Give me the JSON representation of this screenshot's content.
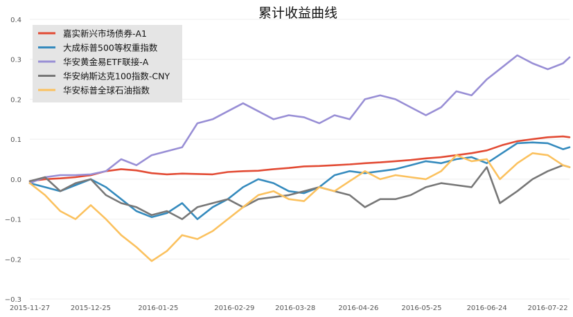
{
  "chart_data": {
    "type": "line",
    "title": "累计收益曲线",
    "xlabel": "",
    "ylabel": "",
    "ylim": [
      -0.3,
      0.4
    ],
    "yticks": [
      -0.3,
      -0.2,
      -0.1,
      0.0,
      0.1,
      0.2,
      0.3,
      0.4
    ],
    "ytick_labels": [
      "−0.3",
      "−0.2",
      "−0.1",
      "0.0",
      "0.1",
      "0.2",
      "0.3",
      "0.4"
    ],
    "xlim": [
      "2015-11-27",
      "2016-08-01"
    ],
    "xticks": [
      "2015-11-27",
      "2015-12-25",
      "2016-01-25",
      "2016-02-29",
      "2016-03-28",
      "2016-04-26",
      "2016-05-25",
      "2016-06-24",
      "2016-07-22"
    ],
    "grid": true,
    "legend_position": "top-left",
    "series": [
      {
        "name": "嘉实新兴市场债券-A1",
        "color": "#e24a33",
        "x": [
          "2015-11-27",
          "2015-12-04",
          "2015-12-11",
          "2015-12-18",
          "2015-12-25",
          "2016-01-01",
          "2016-01-08",
          "2016-01-15",
          "2016-01-22",
          "2016-01-29",
          "2016-02-05",
          "2016-02-19",
          "2016-02-26",
          "2016-03-04",
          "2016-03-11",
          "2016-03-18",
          "2016-03-25",
          "2016-04-01",
          "2016-04-08",
          "2016-04-15",
          "2016-04-22",
          "2016-04-29",
          "2016-05-06",
          "2016-05-13",
          "2016-05-20",
          "2016-05-27",
          "2016-06-03",
          "2016-06-10",
          "2016-06-17",
          "2016-06-24",
          "2016-07-01",
          "2016-07-08",
          "2016-07-15",
          "2016-07-22",
          "2016-07-29",
          "2016-08-01"
        ],
        "y": [
          -0.005,
          0.0,
          0.002,
          0.005,
          0.01,
          0.02,
          0.025,
          0.022,
          0.015,
          0.012,
          0.014,
          0.012,
          0.018,
          0.02,
          0.021,
          0.025,
          0.028,
          0.032,
          0.033,
          0.035,
          0.037,
          0.04,
          0.042,
          0.045,
          0.048,
          0.052,
          0.055,
          0.06,
          0.065,
          0.072,
          0.085,
          0.095,
          0.1,
          0.105,
          0.107,
          0.105
        ]
      },
      {
        "name": "大成标普500等权重指数",
        "color": "#348abd",
        "x": [
          "2015-11-27",
          "2015-12-04",
          "2015-12-11",
          "2015-12-18",
          "2015-12-25",
          "2016-01-01",
          "2016-01-08",
          "2016-01-15",
          "2016-01-22",
          "2016-01-29",
          "2016-02-05",
          "2016-02-12",
          "2016-02-19",
          "2016-02-26",
          "2016-03-04",
          "2016-03-11",
          "2016-03-18",
          "2016-03-25",
          "2016-04-01",
          "2016-04-08",
          "2016-04-15",
          "2016-04-22",
          "2016-04-29",
          "2016-05-06",
          "2016-05-13",
          "2016-05-20",
          "2016-05-27",
          "2016-06-03",
          "2016-06-10",
          "2016-06-17",
          "2016-06-24",
          "2016-07-01",
          "2016-07-08",
          "2016-07-15",
          "2016-07-22",
          "2016-07-29",
          "2016-08-01"
        ],
        "y": [
          -0.01,
          -0.02,
          -0.03,
          -0.015,
          0.0,
          -0.02,
          -0.05,
          -0.08,
          -0.095,
          -0.085,
          -0.06,
          -0.1,
          -0.07,
          -0.05,
          -0.02,
          0.0,
          -0.01,
          -0.03,
          -0.035,
          -0.02,
          0.01,
          0.02,
          0.015,
          0.02,
          0.025,
          0.035,
          0.045,
          0.04,
          0.05,
          0.055,
          0.04,
          0.065,
          0.09,
          0.092,
          0.09,
          0.075,
          0.08
        ]
      },
      {
        "name": "华安黄金易ETF联接-A",
        "color": "#988ed5",
        "x": [
          "2015-11-27",
          "2015-12-04",
          "2015-12-11",
          "2015-12-18",
          "2015-12-25",
          "2016-01-01",
          "2016-01-08",
          "2016-01-15",
          "2016-01-22",
          "2016-01-29",
          "2016-02-05",
          "2016-02-12",
          "2016-02-19",
          "2016-02-26",
          "2016-03-04",
          "2016-03-11",
          "2016-03-18",
          "2016-03-25",
          "2016-04-01",
          "2016-04-08",
          "2016-04-15",
          "2016-04-22",
          "2016-04-29",
          "2016-05-06",
          "2016-05-13",
          "2016-05-20",
          "2016-05-27",
          "2016-06-03",
          "2016-06-10",
          "2016-06-17",
          "2016-06-24",
          "2016-07-01",
          "2016-07-08",
          "2016-07-15",
          "2016-07-22",
          "2016-07-29",
          "2016-08-01"
        ],
        "y": [
          -0.01,
          0.005,
          0.01,
          0.01,
          0.012,
          0.02,
          0.05,
          0.035,
          0.06,
          0.07,
          0.08,
          0.14,
          0.15,
          0.17,
          0.19,
          0.17,
          0.15,
          0.16,
          0.155,
          0.14,
          0.16,
          0.15,
          0.2,
          0.21,
          0.2,
          0.18,
          0.16,
          0.18,
          0.22,
          0.21,
          0.25,
          0.28,
          0.31,
          0.29,
          0.275,
          0.29,
          0.305
        ]
      },
      {
        "name": "华安纳斯达克100指数-CNY",
        "color": "#777777",
        "x": [
          "2015-11-27",
          "2015-12-04",
          "2015-12-11",
          "2015-12-18",
          "2015-12-25",
          "2016-01-01",
          "2016-01-08",
          "2016-01-15",
          "2016-01-22",
          "2016-01-29",
          "2016-02-05",
          "2016-02-12",
          "2016-02-19",
          "2016-02-26",
          "2016-03-04",
          "2016-03-11",
          "2016-03-18",
          "2016-03-25",
          "2016-04-01",
          "2016-04-08",
          "2016-04-15",
          "2016-04-22",
          "2016-04-29",
          "2016-05-06",
          "2016-05-13",
          "2016-05-20",
          "2016-05-27",
          "2016-06-03",
          "2016-06-10",
          "2016-06-17",
          "2016-06-24",
          "2016-06-30",
          "2016-07-08",
          "2016-07-15",
          "2016-07-22",
          "2016-07-29",
          "2016-08-01"
        ],
        "y": [
          -0.005,
          0.005,
          -0.03,
          -0.01,
          0.0,
          -0.04,
          -0.06,
          -0.07,
          -0.09,
          -0.08,
          -0.1,
          -0.07,
          -0.06,
          -0.05,
          -0.07,
          -0.05,
          -0.045,
          -0.04,
          -0.03,
          -0.02,
          -0.03,
          -0.04,
          -0.07,
          -0.05,
          -0.05,
          -0.04,
          -0.02,
          -0.01,
          -0.015,
          -0.02,
          0.03,
          -0.06,
          -0.03,
          0.0,
          0.02,
          0.035,
          0.03
        ]
      },
      {
        "name": "华安标普全球石油指数",
        "color": "#fbc15e",
        "x": [
          "2015-11-27",
          "2015-12-04",
          "2015-12-11",
          "2015-12-18",
          "2015-12-25",
          "2016-01-01",
          "2016-01-08",
          "2016-01-15",
          "2016-01-22",
          "2016-01-29",
          "2016-02-05",
          "2016-02-12",
          "2016-02-19",
          "2016-02-26",
          "2016-03-04",
          "2016-03-11",
          "2016-03-18",
          "2016-03-25",
          "2016-04-01",
          "2016-04-08",
          "2016-04-15",
          "2016-04-22",
          "2016-04-29",
          "2016-05-06",
          "2016-05-13",
          "2016-05-20",
          "2016-05-27",
          "2016-06-03",
          "2016-06-10",
          "2016-06-17",
          "2016-06-24",
          "2016-06-30",
          "2016-07-08",
          "2016-07-15",
          "2016-07-22",
          "2016-07-29",
          "2016-08-01"
        ],
        "y": [
          -0.01,
          -0.04,
          -0.08,
          -0.1,
          -0.065,
          -0.1,
          -0.14,
          -0.17,
          -0.205,
          -0.18,
          -0.14,
          -0.15,
          -0.13,
          -0.1,
          -0.07,
          -0.04,
          -0.03,
          -0.05,
          -0.055,
          -0.02,
          -0.03,
          -0.005,
          0.02,
          0.0,
          0.01,
          0.005,
          0.0,
          0.02,
          0.06,
          0.045,
          0.05,
          0.0,
          0.04,
          0.065,
          0.06,
          0.035,
          0.03
        ]
      }
    ]
  }
}
